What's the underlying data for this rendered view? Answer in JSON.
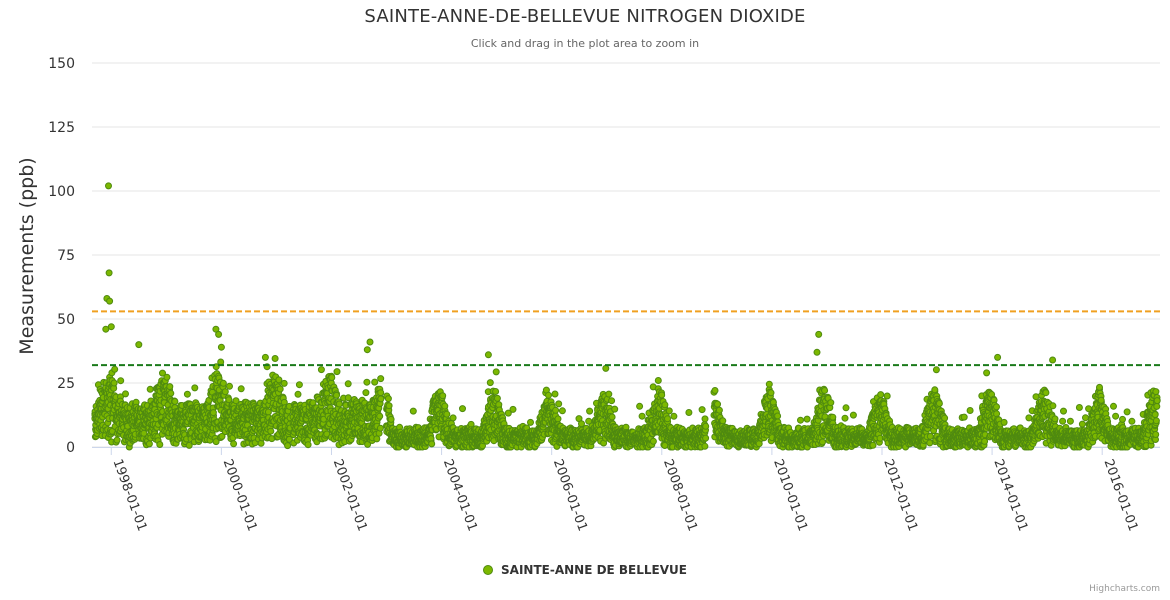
{
  "chart_data": {
    "type": "scatter",
    "title": "SAINTE-ANNE-DE-BELLEVUE NITROGEN DIOXIDE",
    "subtitle": "Click and drag in the plot area to zoom in",
    "ylabel": "Measurements (ppb)",
    "xlabel": "",
    "ylim": [
      0,
      150
    ],
    "yticks": [
      0,
      25,
      50,
      75,
      100,
      125,
      150
    ],
    "xlim": [
      1997.65,
      2017.05
    ],
    "xticks": [
      {
        "label": "1998-01-01",
        "value": 1998
      },
      {
        "label": "2000-01-01",
        "value": 2000
      },
      {
        "label": "2002-01-01",
        "value": 2002
      },
      {
        "label": "2004-01-01",
        "value": 2004
      },
      {
        "label": "2006-01-01",
        "value": 2006
      },
      {
        "label": "2008-01-01",
        "value": 2008
      },
      {
        "label": "2010-01-01",
        "value": 2010
      },
      {
        "label": "2012-01-01",
        "value": 2012
      },
      {
        "label": "2014-01-01",
        "value": 2014
      },
      {
        "label": "2016-01-01",
        "value": 2016
      }
    ],
    "reference_lines": [
      {
        "value": 53,
        "color": "#f0a020",
        "style": "dashed"
      },
      {
        "value": 32,
        "color": "#1a7a1a",
        "style": "dashed"
      }
    ],
    "series": [
      {
        "name": "SAINTE-ANNE DE BELLEVUE",
        "color": "#7cb800",
        "edge_color": "#4f8a10",
        "segments": [
          [
            1997.7,
            2001.25
          ],
          [
            2001.3,
            2002.9
          ],
          [
            2003.0,
            2008.8
          ],
          [
            2008.95,
            2017.0
          ]
        ],
        "peak_points": [
          {
            "x": 1997.95,
            "y": 102
          },
          {
            "x": 1997.96,
            "y": 68
          },
          {
            "x": 1997.92,
            "y": 58
          },
          {
            "x": 1997.97,
            "y": 57
          },
          {
            "x": 1997.9,
            "y": 46
          },
          {
            "x": 1998.0,
            "y": 47
          },
          {
            "x": 1998.5,
            "y": 40
          },
          {
            "x": 1999.9,
            "y": 46
          },
          {
            "x": 1999.95,
            "y": 44
          },
          {
            "x": 2000.0,
            "y": 39
          },
          {
            "x": 2000.8,
            "y": 35
          },
          {
            "x": 2002.7,
            "y": 41
          },
          {
            "x": 2002.65,
            "y": 38
          },
          {
            "x": 2004.85,
            "y": 36
          },
          {
            "x": 2010.85,
            "y": 44
          },
          {
            "x": 2010.82,
            "y": 37
          },
          {
            "x": 2014.1,
            "y": 35
          },
          {
            "x": 2015.1,
            "y": 34
          }
        ]
      }
    ]
  },
  "legend": {
    "label": "SAINTE-ANNE DE BELLEVUE"
  },
  "credits": "Highcharts.com"
}
